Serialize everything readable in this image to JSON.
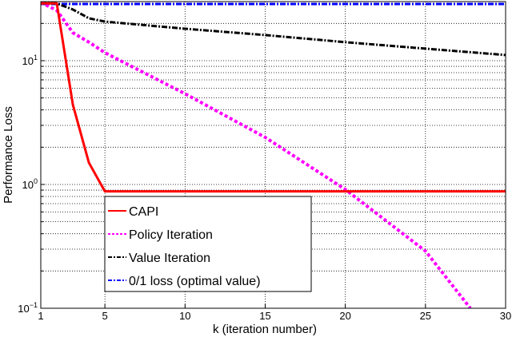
{
  "chart_data": {
    "type": "line",
    "title": "",
    "xlabel": "k (iteration number)",
    "ylabel": "Performance Loss",
    "xlim": [
      1,
      30
    ],
    "ylim": [
      0.1,
      30
    ],
    "yscale": "log",
    "grid": true,
    "x_ticks": [
      1,
      5,
      10,
      15,
      20,
      25,
      30
    ],
    "x_tick_labels": [
      "1",
      "5",
      "10",
      "15",
      "20",
      "25",
      "30"
    ],
    "y_ticks": [
      0.1,
      1,
      10
    ],
    "y_tick_labels": [
      {
        "base": "10",
        "exp": "−1"
      },
      {
        "base": "10",
        "exp": "0"
      },
      {
        "base": "10",
        "exp": "1"
      }
    ],
    "legend_position": "inside-lower-left",
    "series": [
      {
        "name": "CAPI",
        "color": "#ff0000",
        "style": "solid",
        "x": [
          1,
          2,
          3,
          4,
          5,
          10,
          15,
          20,
          25,
          30
        ],
        "values": [
          29,
          29,
          4.4,
          1.5,
          0.88,
          0.88,
          0.88,
          0.88,
          0.88,
          0.88
        ]
      },
      {
        "name": "Policy Iteration",
        "color": "#ff00ff",
        "style": "dotted",
        "x": [
          1,
          2,
          3,
          4,
          5,
          10,
          15,
          20,
          25,
          27.8
        ],
        "values": [
          29.5,
          25.5,
          16.8,
          14.1,
          11.6,
          5.4,
          2.4,
          0.91,
          0.29,
          0.1
        ]
      },
      {
        "name": "Value Iteration",
        "color": "#000000",
        "style": "dashdot",
        "x": [
          1,
          2,
          3,
          4,
          5,
          10,
          15,
          20,
          25,
          30
        ],
        "values": [
          29,
          29,
          25.9,
          22,
          20.7,
          18.1,
          16.1,
          14.1,
          12.5,
          11.1
        ]
      },
      {
        "name": "0/1 loss (optimal value)",
        "color": "#0000ff",
        "style": "dashdot",
        "x": [
          1,
          30
        ],
        "values": [
          28.7,
          28.7
        ]
      }
    ]
  },
  "legend": {
    "items": [
      {
        "label": "CAPI"
      },
      {
        "label": "Policy Iteration"
      },
      {
        "label": "Value Iteration"
      },
      {
        "label": "0/1 loss (optimal value)"
      }
    ]
  }
}
